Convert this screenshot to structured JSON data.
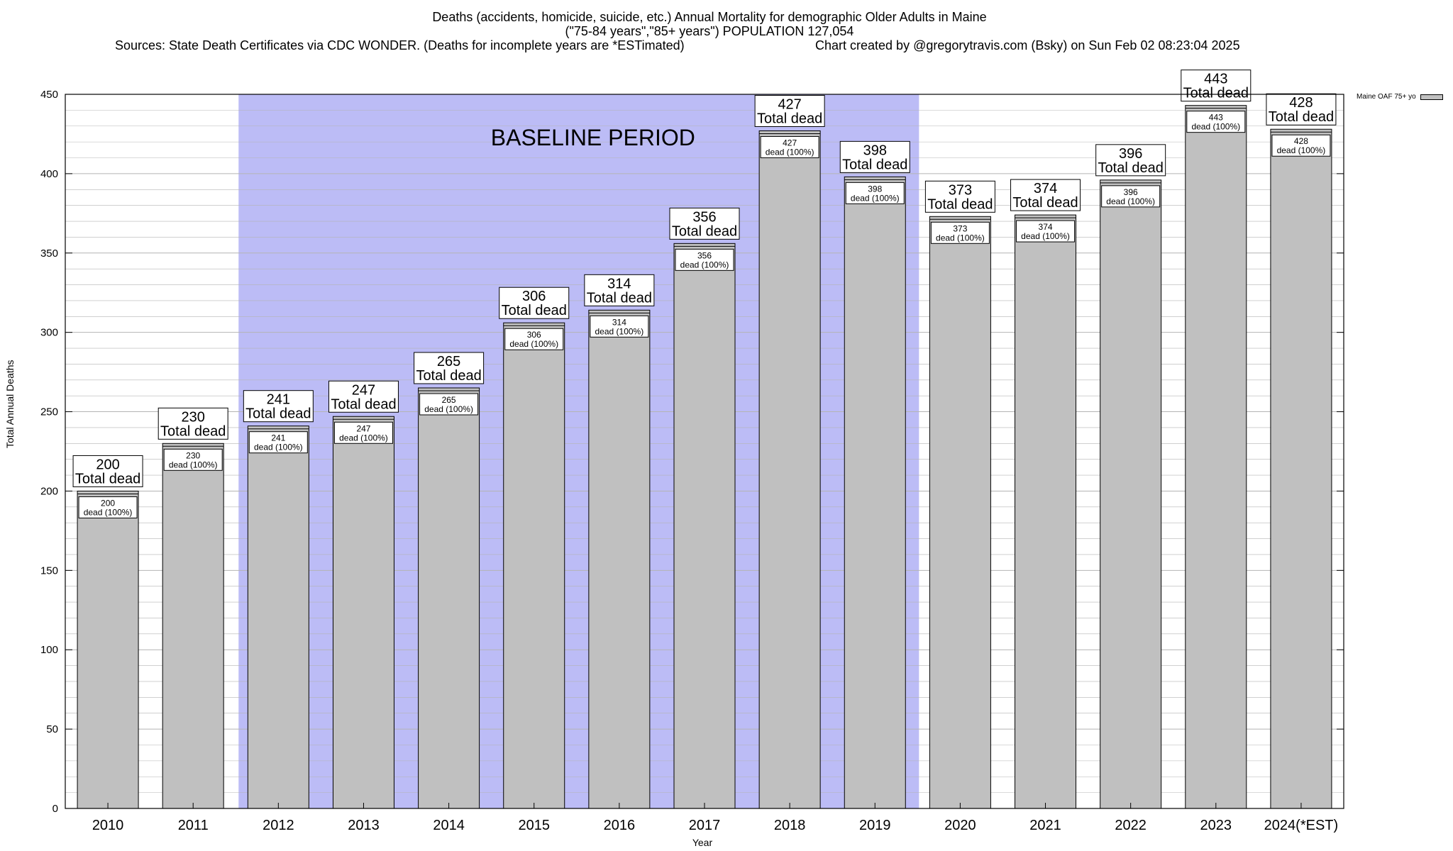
{
  "header": {
    "title_line1": "Deaths (accidents, homicide, suicide, etc.) Annual Mortality for demographic Older Adults in Maine",
    "title_line2": "(\"75-84 years\",\"85+ years\") POPULATION 127,054",
    "sources": "Sources: State Death Certificates via CDC WONDER. (Deaths for incomplete years are *ESTimated)",
    "credit": "Chart created by @gregorytravis.com (Bsky) on Sun Feb 02 08:23:04 2025"
  },
  "colors": {
    "bar_fill": "#c0c0c0",
    "baseline_shade": "#bcbcf6",
    "grid": "#b4b4b4"
  },
  "chart_data": {
    "type": "bar",
    "categories": [
      "2010",
      "2011",
      "2012",
      "2013",
      "2014",
      "2015",
      "2016",
      "2017",
      "2018",
      "2019",
      "2020",
      "2021",
      "2022",
      "2023",
      "2024(*EST)"
    ],
    "series": [
      {
        "name": "Maine OAF 75+ yo",
        "values": [
          200,
          230,
          241,
          247,
          265,
          306,
          314,
          356,
          427,
          398,
          373,
          374,
          396,
          443,
          428
        ]
      }
    ],
    "total_label": "Total dead",
    "inner_label": "dead (100%)",
    "baseline_label": "BASELINE PERIOD",
    "baseline_range": [
      "2012",
      "2019"
    ],
    "xlabel": "Year",
    "ylabel": "Total Annual Deaths",
    "ylim": [
      0,
      450
    ],
    "y_ticks": [
      0,
      50,
      100,
      150,
      200,
      250,
      300,
      350,
      400,
      450
    ],
    "grid": true,
    "legend_position": "top-right"
  }
}
